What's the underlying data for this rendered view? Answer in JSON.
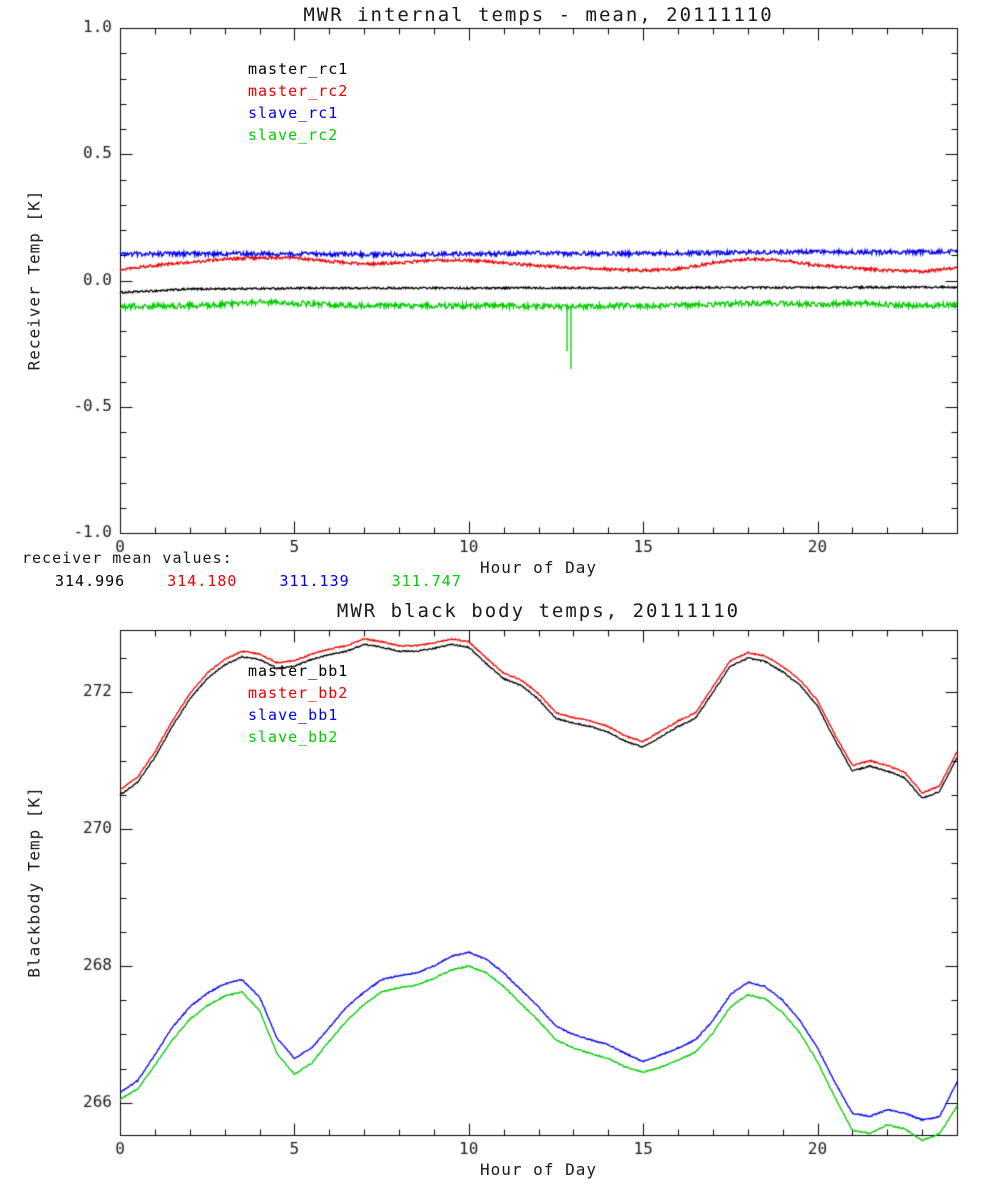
{
  "between": {
    "label": "receiver mean values:",
    "values": [
      "314.996",
      "314.180",
      "311.139",
      "311.747"
    ]
  },
  "chart_data": [
    {
      "type": "line",
      "title": "MWR internal temps - mean, 20111110",
      "xlabel": "Hour of Day",
      "ylabel": "Receiver Temp [K]",
      "xlim": [
        0,
        24
      ],
      "ylim": [
        -1.0,
        1.0
      ],
      "xticks": [
        0,
        5,
        10,
        15,
        20
      ],
      "xtick_labels": [
        "0",
        "5",
        "10",
        "15",
        "20"
      ],
      "yticks": [
        1.0,
        0.5,
        0.0,
        -0.5,
        -1.0
      ],
      "ytick_labels": [
        "1.0",
        "0.5",
        "0.0",
        "-0.5",
        "-1.0"
      ],
      "x_minor": 1,
      "y_minor": 0.1,
      "grid": false,
      "legend_position": "upper-left-inside",
      "series": [
        {
          "name": "master_rc1",
          "color": "#000000",
          "noise": 0.004,
          "x_start": 0,
          "x_step": 2,
          "y": [
            -0.048,
            -0.034,
            -0.032,
            -0.03,
            -0.03,
            -0.03,
            -0.029,
            -0.029,
            -0.028,
            -0.028,
            -0.028,
            -0.027,
            -0.026
          ]
        },
        {
          "name": "master_rc2",
          "color": "#ee0000",
          "noise": 0.006,
          "x_start": 0,
          "x_step": 1,
          "y": [
            0.045,
            0.06,
            0.072,
            0.085,
            0.09,
            0.09,
            0.076,
            0.065,
            0.07,
            0.08,
            0.08,
            0.07,
            0.058,
            0.05,
            0.045,
            0.04,
            0.046,
            0.07,
            0.086,
            0.08,
            0.06,
            0.05,
            0.04,
            0.036,
            0.05
          ]
        },
        {
          "name": "slave_rc1",
          "color": "#0000ee",
          "noise": 0.009,
          "x_start": 0,
          "x_step": 2,
          "y": [
            0.105,
            0.105,
            0.107,
            0.104,
            0.103,
            0.105,
            0.108,
            0.106,
            0.108,
            0.111,
            0.114,
            0.112,
            0.115
          ]
        },
        {
          "name": "slave_rc2",
          "color": "#00cc00",
          "noise": 0.011,
          "x_start": 0,
          "x_step": 1,
          "y": [
            -0.105,
            -0.1,
            -0.1,
            -0.095,
            -0.086,
            -0.09,
            -0.096,
            -0.1,
            -0.1,
            -0.1,
            -0.1,
            -0.1,
            -0.102,
            -0.105,
            -0.1,
            -0.1,
            -0.1,
            -0.094,
            -0.09,
            -0.09,
            -0.095,
            -0.09,
            -0.095,
            -0.1,
            -0.095
          ]
        }
      ],
      "spikes": [
        {
          "series": 3,
          "x": 12.82,
          "y": -0.28
        },
        {
          "series": 3,
          "x": 12.93,
          "y": -0.35
        }
      ]
    },
    {
      "type": "line",
      "title": "MWR black body temps, 20111110",
      "xlabel": "Hour of Day",
      "ylabel": "Blackbody Temp [K]",
      "xlim": [
        0,
        24
      ],
      "ylim": [
        265.53,
        272.91
      ],
      "xticks": [
        0,
        5,
        10,
        15,
        20
      ],
      "xtick_labels": [
        "0",
        "5",
        "10",
        "15",
        "20"
      ],
      "yticks": [
        272,
        270,
        268,
        266
      ],
      "ytick_labels": [
        "272",
        "270",
        "268",
        "266"
      ],
      "x_minor": 1,
      "y_minor": 0.5,
      "grid": false,
      "legend_position": "upper-left-inside",
      "series": [
        {
          "name": "master_bb1",
          "color": "#000000",
          "noise": 0.01,
          "x_start": 0,
          "x_step": 0.5,
          "y": [
            270.5,
            270.68,
            271.05,
            271.5,
            271.9,
            272.2,
            272.4,
            272.52,
            272.48,
            272.35,
            272.38,
            272.48,
            272.55,
            272.6,
            272.7,
            272.66,
            272.6,
            272.6,
            272.64,
            272.7,
            272.66,
            272.42,
            272.2,
            272.1,
            271.9,
            271.62,
            271.55,
            271.5,
            271.42,
            271.28,
            271.2,
            271.35,
            271.5,
            271.62,
            272.0,
            272.38,
            272.5,
            272.45,
            272.3,
            272.1,
            271.8,
            271.3,
            270.85,
            270.92,
            270.85,
            270.75,
            270.45,
            270.55,
            271.05
          ]
        },
        {
          "name": "master_bb2",
          "color": "#ee0000",
          "noise": 0.01,
          "x_start": 0,
          "x_step": 0.5,
          "y": [
            270.58,
            270.76,
            271.13,
            271.58,
            271.98,
            272.28,
            272.48,
            272.6,
            272.56,
            272.43,
            272.46,
            272.56,
            272.63,
            272.68,
            272.78,
            272.74,
            272.68,
            272.68,
            272.72,
            272.78,
            272.74,
            272.5,
            272.28,
            272.18,
            271.98,
            271.7,
            271.63,
            271.58,
            271.5,
            271.36,
            271.28,
            271.43,
            271.58,
            271.7,
            272.08,
            272.46,
            272.58,
            272.53,
            272.38,
            272.18,
            271.88,
            271.38,
            270.93,
            271.0,
            270.93,
            270.83,
            270.53,
            270.63,
            271.13
          ]
        },
        {
          "name": "slave_bb1",
          "color": "#0000ee",
          "noise": 0.01,
          "x_start": 0,
          "x_step": 0.5,
          "y": [
            266.15,
            266.32,
            266.7,
            267.1,
            267.4,
            267.6,
            267.74,
            267.8,
            267.55,
            266.95,
            266.65,
            266.8,
            267.1,
            267.4,
            267.62,
            267.8,
            267.86,
            267.9,
            268.0,
            268.14,
            268.2,
            268.1,
            267.9,
            267.65,
            267.4,
            267.12,
            267.0,
            266.92,
            266.85,
            266.72,
            266.6,
            266.7,
            266.8,
            266.92,
            267.2,
            267.58,
            267.76,
            267.7,
            267.5,
            267.2,
            266.8,
            266.3,
            265.85,
            265.8,
            265.9,
            265.85,
            265.75,
            265.8,
            266.3
          ]
        },
        {
          "name": "slave_bb2",
          "color": "#00cc00",
          "noise": 0.01,
          "x_start": 0,
          "x_step": 0.5,
          "y": [
            266.05,
            266.2,
            266.55,
            266.92,
            267.22,
            267.42,
            267.56,
            267.62,
            267.35,
            266.72,
            266.42,
            266.58,
            266.9,
            267.2,
            267.44,
            267.62,
            267.68,
            267.72,
            267.82,
            267.94,
            268.0,
            267.9,
            267.7,
            267.45,
            267.2,
            266.92,
            266.8,
            266.72,
            266.65,
            266.52,
            266.45,
            266.52,
            266.62,
            266.74,
            267.02,
            267.4,
            267.58,
            267.52,
            267.32,
            267.02,
            266.6,
            266.08,
            265.6,
            265.55,
            265.68,
            265.62,
            265.45,
            265.55,
            265.95
          ]
        }
      ],
      "spikes": []
    }
  ]
}
